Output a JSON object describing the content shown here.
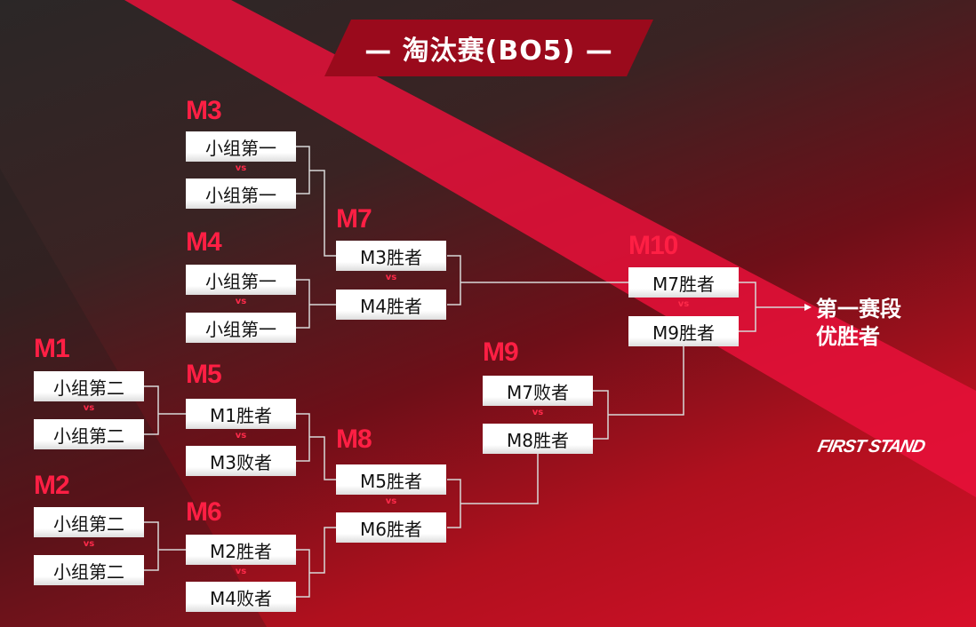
{
  "title": "— 淘汰赛(BO5) —",
  "vs": "vs",
  "matches": {
    "M1": {
      "label": "M1",
      "a": "小组第二",
      "b": "小组第二"
    },
    "M2": {
      "label": "M2",
      "a": "小组第二",
      "b": "小组第二"
    },
    "M3": {
      "label": "M3",
      "a": "小组第一",
      "b": "小组第一"
    },
    "M4": {
      "label": "M4",
      "a": "小组第一",
      "b": "小组第一"
    },
    "M5": {
      "label": "M5",
      "a": "M1胜者",
      "b": "M3败者"
    },
    "M6": {
      "label": "M6",
      "a": "M2胜者",
      "b": "M4败者"
    },
    "M7": {
      "label": "M7",
      "a": "M3胜者",
      "b": "M4胜者"
    },
    "M8": {
      "label": "M8",
      "a": "M5胜者",
      "b": "M6胜者"
    },
    "M9": {
      "label": "M9",
      "a": "M7败者",
      "b": "M8胜者"
    },
    "M10": {
      "label": "M10",
      "a": "M7胜者",
      "b": "M9胜者"
    }
  },
  "final": {
    "line1": "第一赛段",
    "line2": "优胜者"
  },
  "logo": "FIRST STAND",
  "colors": {
    "accent": "#ff1f44",
    "line": "#d8d8d8"
  }
}
